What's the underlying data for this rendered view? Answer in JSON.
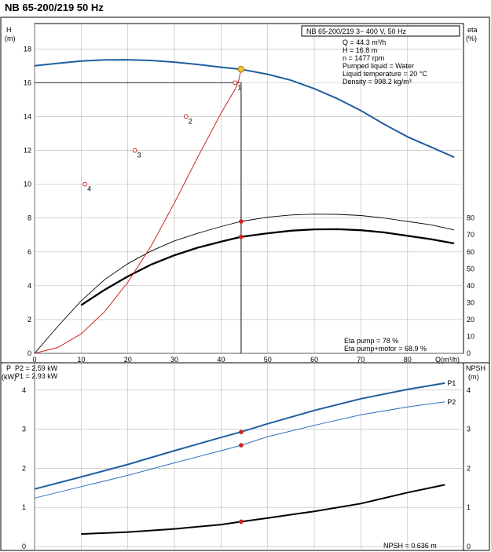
{
  "title": "NB 65-200/219 50 Hz",
  "chart_data": [
    {
      "type": "line",
      "panel": "performance",
      "header": "NB 65-200/219     3~ 400 V, 50 Hz",
      "info": [
        "Q = 44.3 m³/h",
        "H = 16.8 m",
        "n = 1477 rpm",
        "Pumped liquid = Water",
        "Liquid temperature = 20 °C",
        "Density = 998.2 kg/m³"
      ],
      "xlabel": "Q(m³/h)",
      "x_ticks": [
        0,
        10,
        20,
        30,
        40,
        50,
        60,
        70,
        80
      ],
      "xlim": [
        0,
        92
      ],
      "left_axis": {
        "label": "H",
        "unit": "(m)",
        "ticks": [
          0,
          2,
          4,
          6,
          8,
          10,
          12,
          14,
          16,
          18
        ],
        "ylim": [
          0,
          19.5
        ]
      },
      "right_axis": {
        "label": "eta",
        "unit": "(%)",
        "ticks": [
          0,
          10,
          20,
          30,
          40,
          50,
          60,
          70,
          80
        ],
        "ylim": [
          0,
          195
        ]
      },
      "grid": true,
      "series": [
        {
          "key": "H",
          "axis": "left",
          "color": "#1f5fa0",
          "width": 2,
          "x": [
            0,
            5,
            10,
            15,
            20,
            25,
            30,
            35,
            40,
            44.3,
            50,
            55,
            60,
            65,
            70,
            75,
            80,
            85,
            90
          ],
          "y": [
            17.0,
            17.15,
            17.28,
            17.35,
            17.36,
            17.32,
            17.22,
            17.08,
            16.92,
            16.8,
            16.5,
            16.15,
            15.65,
            15.05,
            14.35,
            13.55,
            12.8,
            12.2,
            11.6
          ]
        },
        {
          "key": "eta_pump",
          "axis": "right",
          "color": "#000000",
          "width": 0.9,
          "x": [
            0,
            5,
            10,
            15,
            20,
            25,
            30,
            35,
            40,
            44.3,
            50,
            55,
            60,
            65,
            70,
            75,
            80,
            85,
            90
          ],
          "y": [
            0,
            16,
            31,
            43.5,
            53,
            60.5,
            66.5,
            71,
            75,
            78,
            80.5,
            81.8,
            82.3,
            82.2,
            81.5,
            80,
            78,
            76,
            73
          ]
        },
        {
          "key": "eta_pump_motor",
          "axis": "right",
          "color": "#000000",
          "width": 2.3,
          "x": [
            10,
            15,
            20,
            25,
            30,
            35,
            40,
            44.3,
            50,
            55,
            60,
            65,
            70,
            75,
            80,
            85,
            90
          ],
          "y": [
            28.5,
            37.5,
            45.5,
            52.5,
            58,
            62.5,
            66,
            68.9,
            71,
            72.5,
            73.3,
            73.4,
            72.8,
            71.5,
            69.5,
            67.5,
            65
          ]
        },
        {
          "key": "system",
          "axis": "left",
          "color": "#cc2222",
          "width": 1,
          "x": [
            0,
            5,
            10,
            15,
            20,
            25,
            30,
            35,
            40,
            42,
            43,
            43.8,
            44.3
          ],
          "y": [
            0,
            0.35,
            1.15,
            2.45,
            4.2,
            6.35,
            8.9,
            11.6,
            14.2,
            15.15,
            15.6,
            16.15,
            16.8
          ]
        }
      ],
      "points": [
        {
          "label": "1",
          "x": 43,
          "y": 16
        },
        {
          "label": "2",
          "x": 32.5,
          "y": 14
        },
        {
          "label": "3",
          "x": 21.5,
          "y": 12
        },
        {
          "label": "4",
          "x": 10.8,
          "y": 10
        }
      ],
      "duty_point": {
        "q": 44.3,
        "h": 16.8
      },
      "reference_level": {
        "h": 16
      },
      "markers": [
        {
          "axis": "right",
          "x": 44.3,
          "y": 78
        },
        {
          "axis": "right",
          "x": 44.3,
          "y": 68.9
        }
      ],
      "results": [
        "Eta pump = 78 %",
        "Eta pump+motor = 68.9 %"
      ]
    },
    {
      "type": "line",
      "panel": "power_npsh",
      "xlim": [
        0,
        92
      ],
      "x_gridlines": [
        0,
        10,
        20,
        30,
        40,
        50,
        60,
        70,
        80
      ],
      "left_axis": {
        "label": "P",
        "unit": "(kW)",
        "ticks": [
          0,
          1,
          2,
          3,
          4
        ],
        "ylim": [
          -0.1,
          4.7
        ]
      },
      "right_axis": {
        "label": "NPSH",
        "unit": "(m)",
        "ticks": [
          0,
          1,
          2,
          3,
          4
        ],
        "ylim": [
          -0.1,
          4.7
        ]
      },
      "grid": true,
      "info": [
        "P2 = 2.59 kW",
        "P1 = 2.93 kW"
      ],
      "series": [
        {
          "key": "P1",
          "name": "P1",
          "axis": "left",
          "color": "#1f5fa0",
          "width": 2,
          "x": [
            0,
            10,
            20,
            30,
            40,
            44.3,
            50,
            60,
            70,
            80,
            88
          ],
          "y": [
            1.47,
            1.78,
            2.1,
            2.45,
            2.79,
            2.93,
            3.14,
            3.48,
            3.78,
            4.02,
            4.18
          ]
        },
        {
          "key": "P2",
          "name": "P2",
          "axis": "left",
          "color": "#2e6fc0",
          "width": 1,
          "x": [
            0,
            10,
            20,
            30,
            40,
            44.3,
            50,
            60,
            70,
            80,
            88
          ],
          "y": [
            1.24,
            1.53,
            1.82,
            2.14,
            2.45,
            2.59,
            2.81,
            3.1,
            3.37,
            3.57,
            3.7
          ]
        },
        {
          "key": "NPSH",
          "axis": "right",
          "color": "#000000",
          "width": 2,
          "x": [
            10,
            20,
            30,
            40,
            44.3,
            50,
            60,
            70,
            80,
            88
          ],
          "y": [
            0.32,
            0.37,
            0.45,
            0.56,
            0.636,
            0.73,
            0.9,
            1.1,
            1.38,
            1.58
          ]
        }
      ],
      "markers": [
        {
          "axis": "left",
          "x": 44.3,
          "y": 2.93
        },
        {
          "axis": "left",
          "x": 44.3,
          "y": 2.59
        },
        {
          "axis": "right",
          "x": 44.3,
          "y": 0.636
        }
      ],
      "results": [
        "NPSH = 0.636 m"
      ]
    }
  ]
}
